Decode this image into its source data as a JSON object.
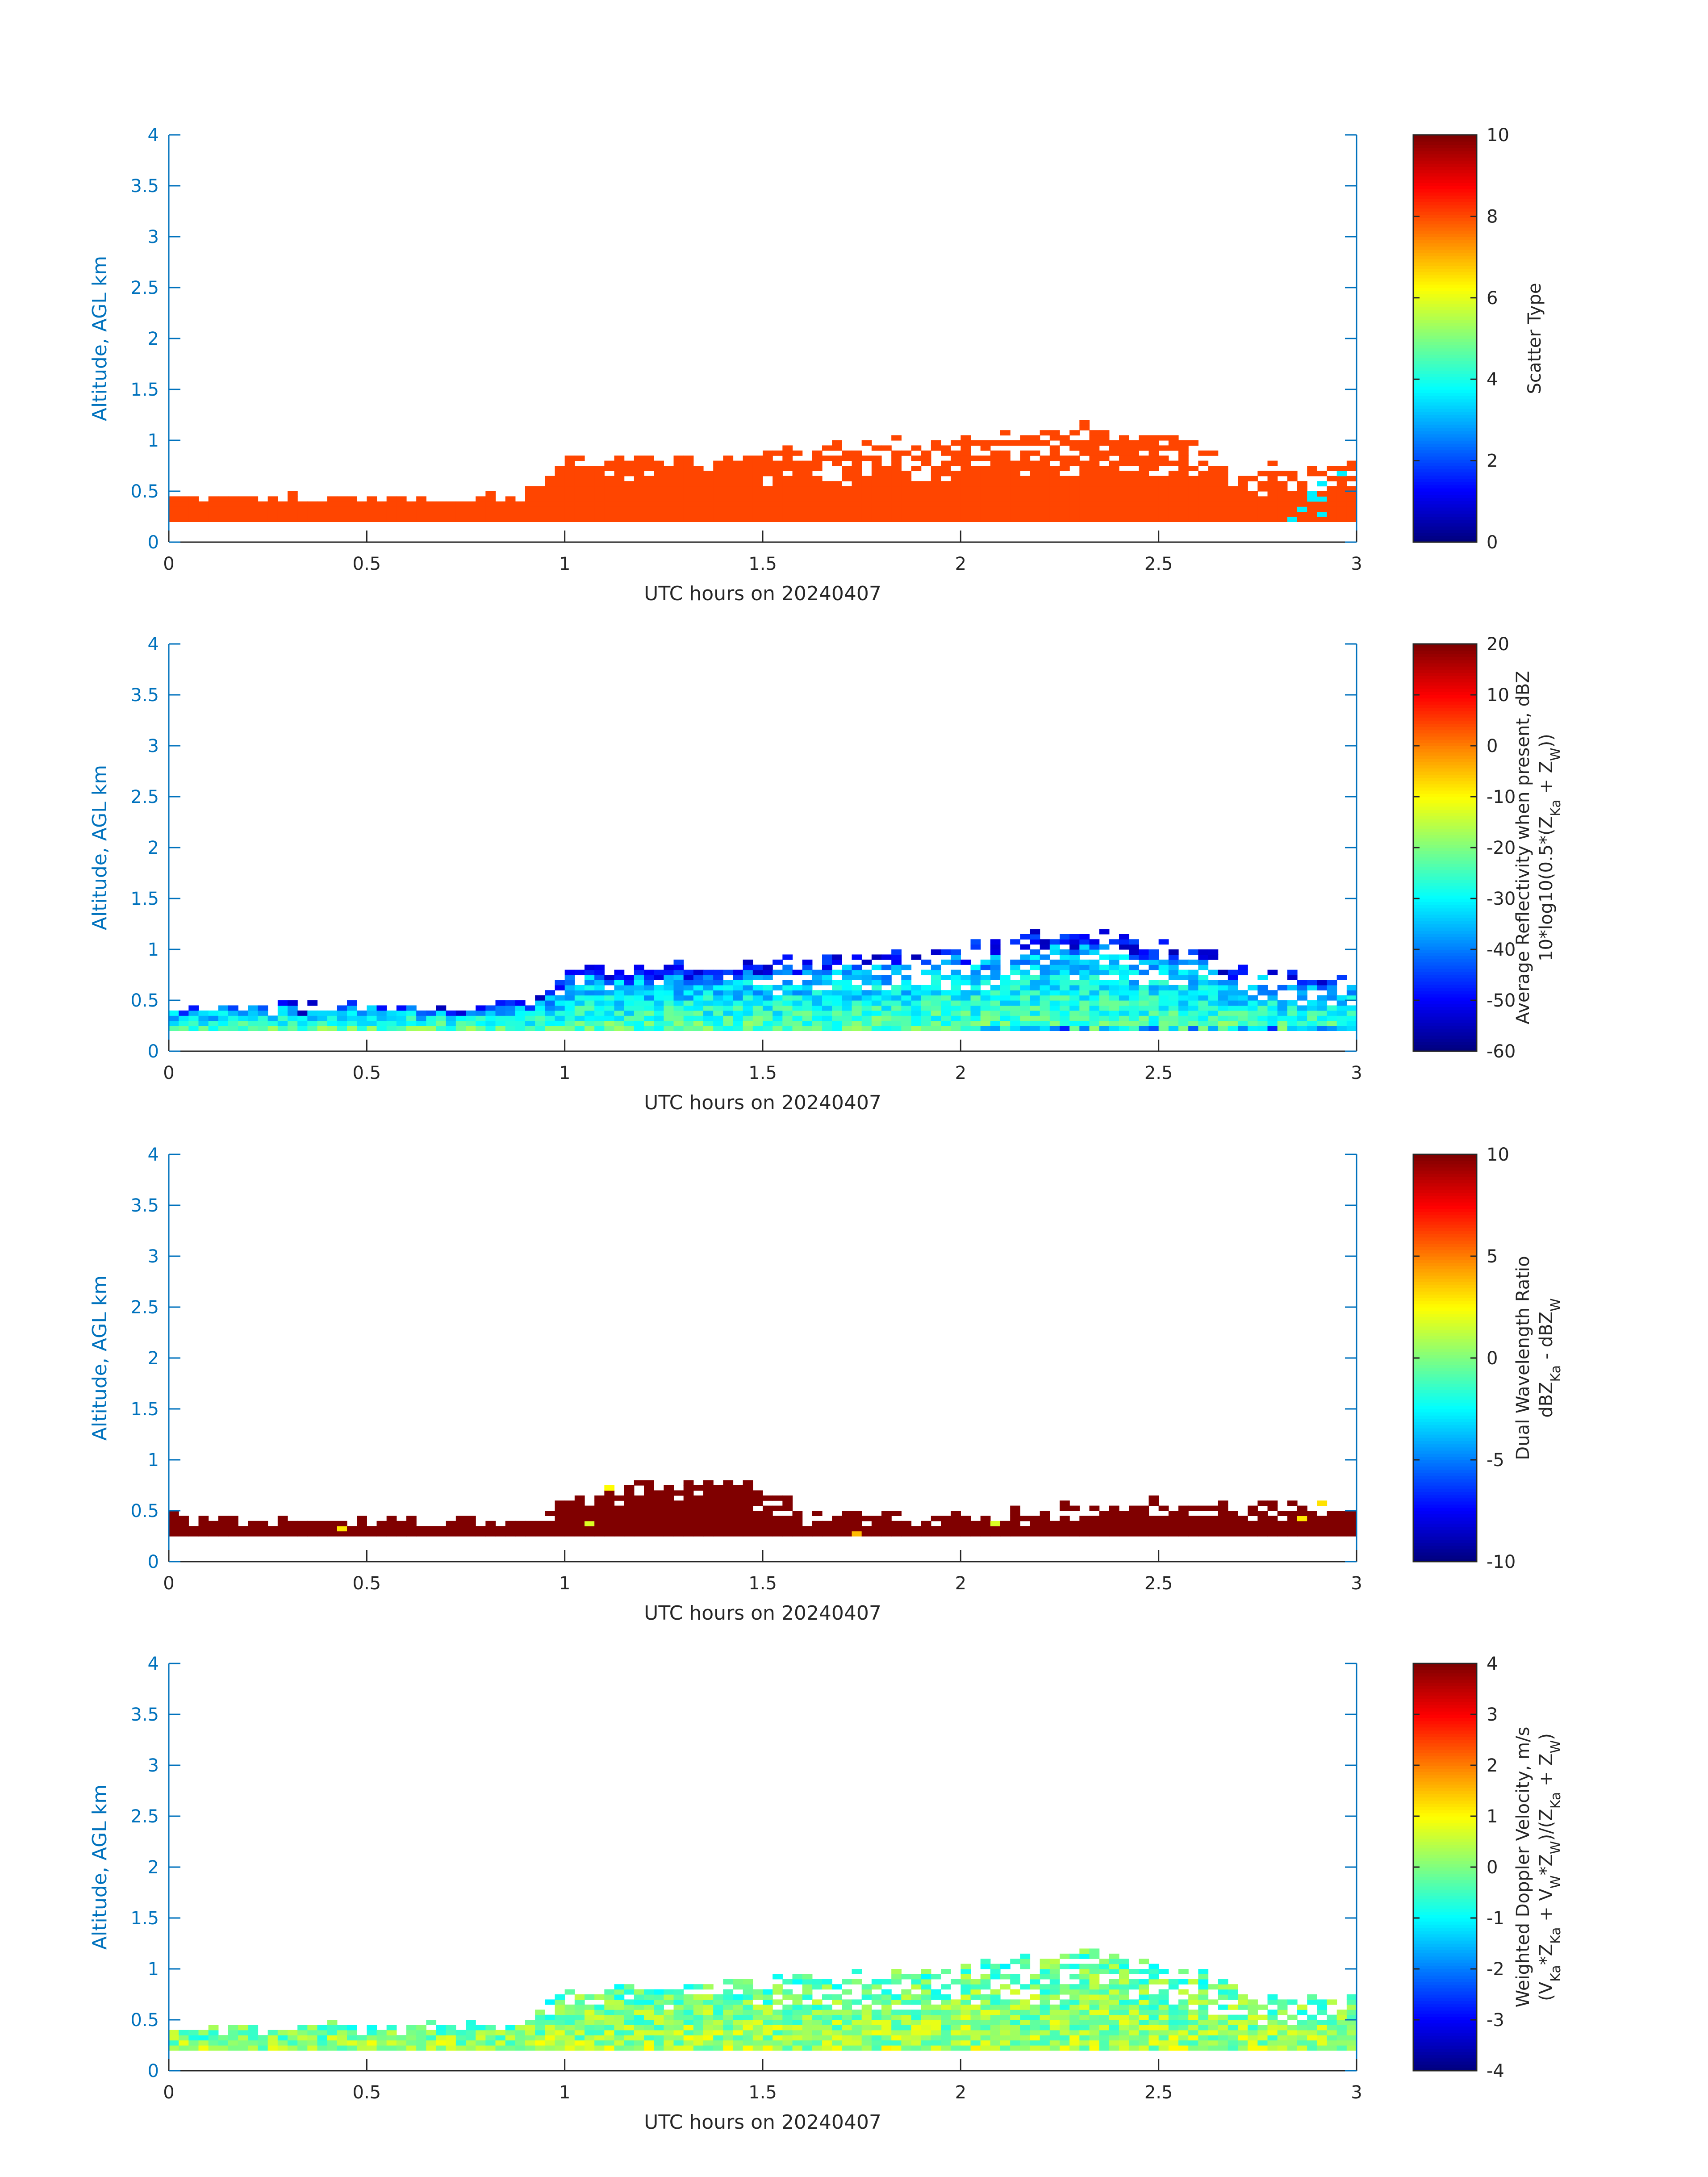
{
  "colors": {
    "axis_blue": "#0072BD",
    "tick_text": "#262626",
    "frame": "#262626",
    "scatter_orange": "#FF4500",
    "dwr_red": "#800000"
  },
  "chart_data": [
    {
      "type": "heatmap",
      "title": "",
      "xlabel": "UTC hours on 20240407",
      "ylabel": "Altitude, AGL km",
      "xlim": [
        0,
        3
      ],
      "ylim": [
        0,
        4
      ],
      "xticks": [
        "0",
        "0.5",
        "1",
        "1.5",
        "2",
        "2.5",
        "3"
      ],
      "yticks": [
        "0",
        "0.5",
        "1",
        "1.5",
        "2",
        "2.5",
        "3",
        "3.5",
        "4"
      ],
      "colorbar": {
        "label_lines": [
          "Scatter Type"
        ],
        "clim": [
          0,
          10
        ],
        "ticks": [
          "0",
          "2",
          "4",
          "6",
          "8",
          "10"
        ]
      },
      "field": {
        "mode": "scatter_type",
        "dominant_value": 8.8,
        "secondary_value": 3.6,
        "echo_base_km": 0.2,
        "echo_top_km": [
          [
            0,
            0.4
          ],
          [
            0.9,
            0.42
          ],
          [
            1.0,
            0.75
          ],
          [
            1.5,
            0.85
          ],
          [
            2.0,
            1.0
          ],
          [
            2.3,
            1.1
          ],
          [
            2.6,
            1.0
          ],
          [
            2.7,
            0.75
          ],
          [
            3.0,
            0.7
          ]
        ]
      }
    },
    {
      "type": "heatmap",
      "title": "",
      "xlabel": "UTC hours on 20240407",
      "ylabel": "Altitude, AGL km",
      "xlim": [
        0,
        3
      ],
      "ylim": [
        0,
        4
      ],
      "xticks": [
        "0",
        "0.5",
        "1",
        "1.5",
        "2",
        "2.5",
        "3"
      ],
      "yticks": [
        "0",
        "0.5",
        "1",
        "1.5",
        "2",
        "2.5",
        "3",
        "3.5",
        "4"
      ],
      "colorbar": {
        "label_lines": [
          "Average Reflectivity when present, dBZ",
          "10*log10(0.5*(Z<sub>Ka</sub> + Z<sub>W</sub>))"
        ],
        "clim": [
          -60,
          20
        ],
        "ticks": [
          "-60",
          "-50",
          "-40",
          "-30",
          "-20",
          "-10",
          "0",
          "10",
          "20"
        ]
      },
      "field": {
        "mode": "reflectivity",
        "core_dbz": -23,
        "edge_dbz": -50,
        "echo_base_km": 0.2,
        "echo_top_km": [
          [
            0,
            0.4
          ],
          [
            0.9,
            0.42
          ],
          [
            1.0,
            0.75
          ],
          [
            1.5,
            0.85
          ],
          [
            2.0,
            1.0
          ],
          [
            2.3,
            1.15
          ],
          [
            2.6,
            1.0
          ],
          [
            2.7,
            0.75
          ],
          [
            3.0,
            0.7
          ]
        ]
      }
    },
    {
      "type": "heatmap",
      "title": "",
      "xlabel": "UTC hours on 20240407",
      "ylabel": "Altitude, AGL km",
      "xlim": [
        0,
        3
      ],
      "ylim": [
        0,
        4
      ],
      "xticks": [
        "0",
        "0.5",
        "1",
        "1.5",
        "2",
        "2.5",
        "3"
      ],
      "yticks": [
        "0",
        "0.5",
        "1",
        "1.5",
        "2",
        "2.5",
        "3",
        "3.5",
        "4"
      ],
      "colorbar": {
        "label_lines": [
          "Dual Wavelength Ratio",
          "dBZ<sub>Ka</sub> - dBZ<sub>W</sub>"
        ],
        "clim": [
          -10,
          10
        ],
        "ticks": [
          "-10",
          "-5",
          "0",
          "5",
          "10"
        ]
      },
      "field": {
        "mode": "dwr",
        "dominant_value": 10,
        "echo_base_km": 0.25,
        "echo_top_km": [
          [
            0,
            0.4
          ],
          [
            0.9,
            0.35
          ],
          [
            1.0,
            0.55
          ],
          [
            1.2,
            0.75
          ],
          [
            1.5,
            0.75
          ],
          [
            1.6,
            0.45
          ],
          [
            2.0,
            0.45
          ],
          [
            2.5,
            0.55
          ],
          [
            3.0,
            0.55
          ]
        ]
      }
    },
    {
      "type": "heatmap",
      "title": "",
      "xlabel": "UTC hours on 20240407",
      "ylabel": "Altitude, AGL km",
      "xlim": [
        0,
        3
      ],
      "ylim": [
        0,
        4
      ],
      "xticks": [
        "0",
        "0.5",
        "1",
        "1.5",
        "2",
        "2.5",
        "3"
      ],
      "yticks": [
        "0",
        "0.5",
        "1",
        "1.5",
        "2",
        "2.5",
        "3",
        "3.5",
        "4"
      ],
      "colorbar": {
        "label_lines": [
          "Weighted Doppler Velocity, m/s",
          "(V<sub>Ka</sub>*Z<sub>Ka</sub> + V<sub>W</sub>*Z<sub>W</sub>)/(Z<sub>Ka</sub> + Z<sub>W</sub>)"
        ],
        "clim": [
          -4,
          4
        ],
        "ticks": [
          "-4",
          "-3",
          "-2",
          "-1",
          "0",
          "1",
          "2",
          "3",
          "4"
        ]
      },
      "field": {
        "mode": "velocity",
        "core_value": 0.3,
        "echo_base_km": 0.2,
        "echo_top_km": [
          [
            0,
            0.4
          ],
          [
            0.9,
            0.42
          ],
          [
            1.0,
            0.75
          ],
          [
            1.5,
            0.85
          ],
          [
            2.0,
            1.0
          ],
          [
            2.3,
            1.15
          ],
          [
            2.6,
            1.0
          ],
          [
            2.7,
            0.75
          ],
          [
            3.0,
            0.7
          ]
        ]
      }
    }
  ]
}
